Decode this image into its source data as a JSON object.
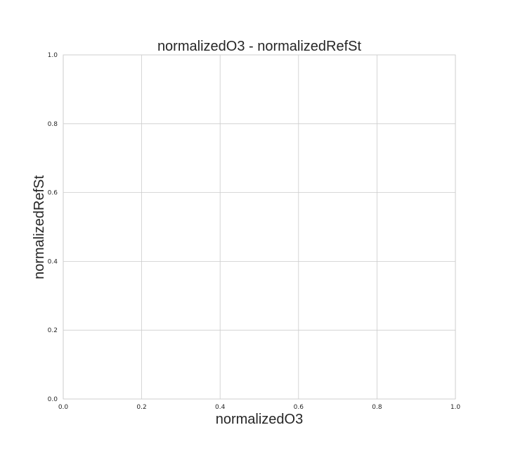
{
  "chart_data": {
    "type": "scatter",
    "title": "normalizedO3 - normalizedRefSt",
    "xlabel": "normalizedO3",
    "ylabel": "normalizedRefSt",
    "xlim": [
      0.0,
      1.0
    ],
    "ylim": [
      0.0,
      1.0
    ],
    "xticks": [
      "0.0",
      "0.2",
      "0.4",
      "0.6",
      "0.8",
      "1.0"
    ],
    "yticks": [
      "0.0",
      "0.2",
      "0.4",
      "0.6",
      "0.8",
      "1.0"
    ],
    "grid": true,
    "series": [
      {
        "x": [],
        "y": []
      }
    ]
  }
}
